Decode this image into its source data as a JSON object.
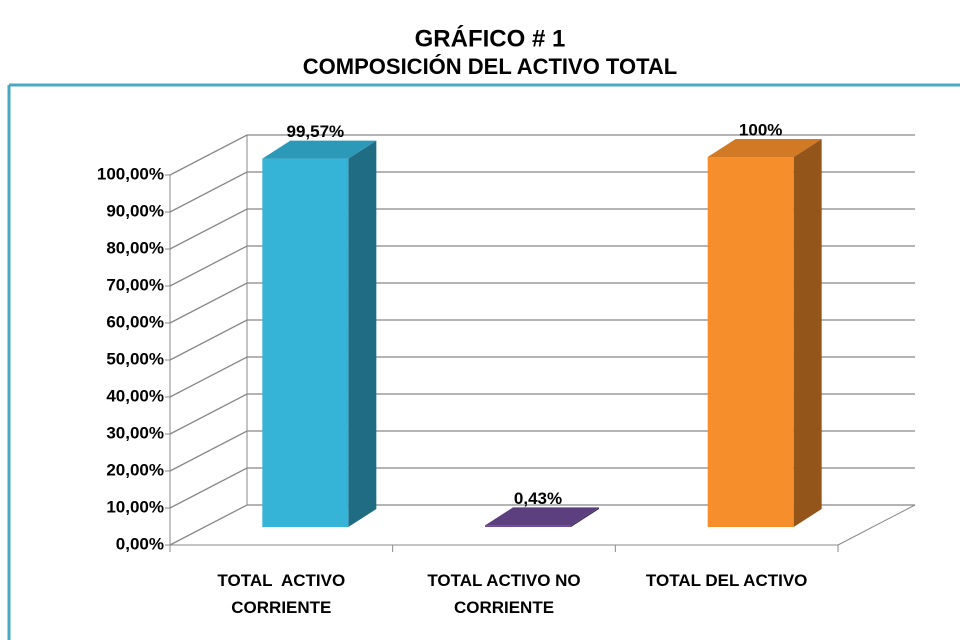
{
  "chart_data": {
    "type": "bar3d",
    "title": "GRÁFICO # 1",
    "subtitle": "COMPOSICIÓN DEL ACTIVO TOTAL",
    "categories": [
      "TOTAL  ACTIVO CORRIENTE",
      "TOTAL ACTIVO NO CORRIENTE",
      "TOTAL DEL ACTIVO"
    ],
    "values": [
      99.57,
      0.43,
      100
    ],
    "value_labels": [
      "99,57%",
      "0,43%",
      "100%"
    ],
    "colors": [
      "#35b4d8",
      "#6b4a94",
      "#f68e2b"
    ],
    "ylim": [
      0,
      100
    ],
    "yticks": [
      {
        "value": 0,
        "label": "0,00%"
      },
      {
        "value": 10,
        "label": "10,00%"
      },
      {
        "value": 20,
        "label": "20,00%"
      },
      {
        "value": 30,
        "label": "30,00%"
      },
      {
        "value": 40,
        "label": "40,00%"
      },
      {
        "value": 50,
        "label": "50,00%"
      },
      {
        "value": 60,
        "label": "60,00%"
      },
      {
        "value": 70,
        "label": "70,00%"
      },
      {
        "value": 80,
        "label": "80,00%"
      },
      {
        "value": 90,
        "label": "90,00%"
      },
      {
        "value": 100,
        "label": "100,00%"
      }
    ],
    "grid": true
  }
}
